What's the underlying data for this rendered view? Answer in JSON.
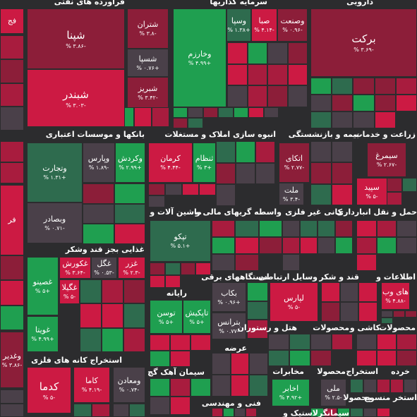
{
  "sectors": [
    {
      "title": "فراورده های نفتی",
      "tiles": [
        {
          "name": "شپنا",
          "change": "-۳.۸۶ %"
        },
        {
          "name": "شبندر",
          "change": "-۳.۰۳ %"
        },
        {
          "name": "شتران",
          "change": "-۳.۸ %"
        },
        {
          "name": "شسپا",
          "change": "+۰.۷۶ %"
        },
        {
          "name": "شبریز",
          "change": "-۳.۴۲ %"
        }
      ]
    },
    {
      "title": "سرمایه گذاریها",
      "tiles": [
        {
          "name": "وخارزم",
          "change": "+۴.۹۹ %"
        },
        {
          "name": "وسپا",
          "change": "+۱.۳۸ %"
        },
        {
          "name": "صبا",
          "change": "-۴.۱۴ %"
        },
        {
          "name": "وصنعت",
          "change": "-۰.۹۶ %"
        }
      ]
    },
    {
      "title": "دارویی",
      "tiles": [
        {
          "name": "برکت",
          "change": "-۳.۶۹ %"
        }
      ]
    },
    {
      "title": "بانکها و موسسات اعتباری",
      "tiles": [
        {
          "name": "وتجارت",
          "change": "+۱.۳۱ %"
        },
        {
          "name": "وپارس",
          "change": "-۱.۸۹ %"
        },
        {
          "name": "وکردش",
          "change": "+۲.۹۹ %"
        },
        {
          "name": "وبصادر",
          "change": "-۰.۷۱ %"
        }
      ]
    },
    {
      "title": "انبوه سازی املاک و مستغلات",
      "tiles": [
        {
          "name": "کرمان",
          "change": "-۴.۴۴ %"
        },
        {
          "name": "ثنظام",
          "change": "+۳ %"
        }
      ]
    },
    {
      "title": "بیمه و بازنشستگی",
      "tiles": [
        {
          "name": "اتکای",
          "change": "-۲.۷۷ %"
        },
        {
          "name": "ملت",
          "change": "-۳.۴ %"
        }
      ]
    },
    {
      "title": "زراعت و خدمات",
      "tiles": [
        {
          "name": "سیمرغ",
          "change": "-۲.۶۷ %"
        },
        {
          "name": "سپید",
          "change": "-۵ %"
        }
      ]
    },
    {
      "title": "ماشین آلات و",
      "tiles": [
        {
          "name": "تپکو",
          "change": "+۵.۱ %"
        }
      ]
    },
    {
      "title": "واسطه گریهای مالی و"
    },
    {
      "title": "کانی غیر فلزی"
    },
    {
      "title": "حمل و نقل انبارداری"
    },
    {
      "title": "غذایی بجز قند وشکر",
      "tiles": [
        {
          "name": "غصینو",
          "change": "+۵ %"
        },
        {
          "name": "غکورش",
          "change": "-۳.۶۴ %"
        },
        {
          "name": "غگل",
          "change": "-۰.۵۳ %"
        },
        {
          "name": "غزر",
          "change": "-۲.۳ %"
        },
        {
          "name": "غگیلا",
          "change": "-۵ %"
        },
        {
          "name": "غویتا",
          "change": "+۴.۹۹ %"
        }
      ]
    },
    {
      "title": "رایانه",
      "tiles": [
        {
          "name": "توسن",
          "change": "+۵ %"
        },
        {
          "name": "تاپکیش",
          "change": "+۵ %"
        }
      ]
    },
    {
      "title": "دستگاههای برقی",
      "tiles": [
        {
          "name": "بکاب",
          "change": "+۰.۹۶ %"
        },
        {
          "name": "بترانس",
          "change": "-۰.۷۷ %"
        }
      ]
    },
    {
      "title": "وسایل ارتباطی",
      "tiles": [
        {
          "name": "لپارس",
          "change": "-۵ %"
        }
      ]
    },
    {
      "title": "قند و شکر"
    },
    {
      "title": "اطلاعات و",
      "tiles": [
        {
          "name": "های وب",
          "change": "-۴.۸۸ %"
        }
      ]
    },
    {
      "title": "اطلاعات و"
    },
    {
      "title": "استخراج کانه های فلزی",
      "tiles": [
        {
          "name": "کدما",
          "change": "-۵ %"
        },
        {
          "name": "کاما",
          "change": "-۴.۱۹ %"
        },
        {
          "name": "ومعادن",
          "change": "-۰.۷۴ %"
        }
      ]
    },
    {
      "title": "سیمان آهک گچ"
    },
    {
      "title": "عرضه"
    },
    {
      "title": "فنی و مهندسی"
    },
    {
      "title": "هتل و رستوران"
    },
    {
      "title": "محصولات"
    },
    {
      "title": "کاشی و"
    },
    {
      "title": "محصولات"
    },
    {
      "title": "مخابرات",
      "tiles": [
        {
          "name": "اخابر",
          "change": "+۴.۹۲ %"
        },
        {
          "name": "ملی",
          "change": "-۲.۵ %"
        }
      ]
    },
    {
      "title": "محصولا"
    },
    {
      "title": "استخراج"
    },
    {
      "title": "خرده"
    },
    {
      "title": "استخر منسوج"
    },
    {
      "title": "محصولا"
    },
    {
      "title": "لاستیک و"
    },
    {
      "title": "سیمانگر"
    }
  ],
  "edge": [
    {
      "name": "فج"
    },
    {
      "name": "فر"
    },
    {
      "name": "وغدیر",
      "change": "-۳.۸۶ %"
    }
  ]
}
